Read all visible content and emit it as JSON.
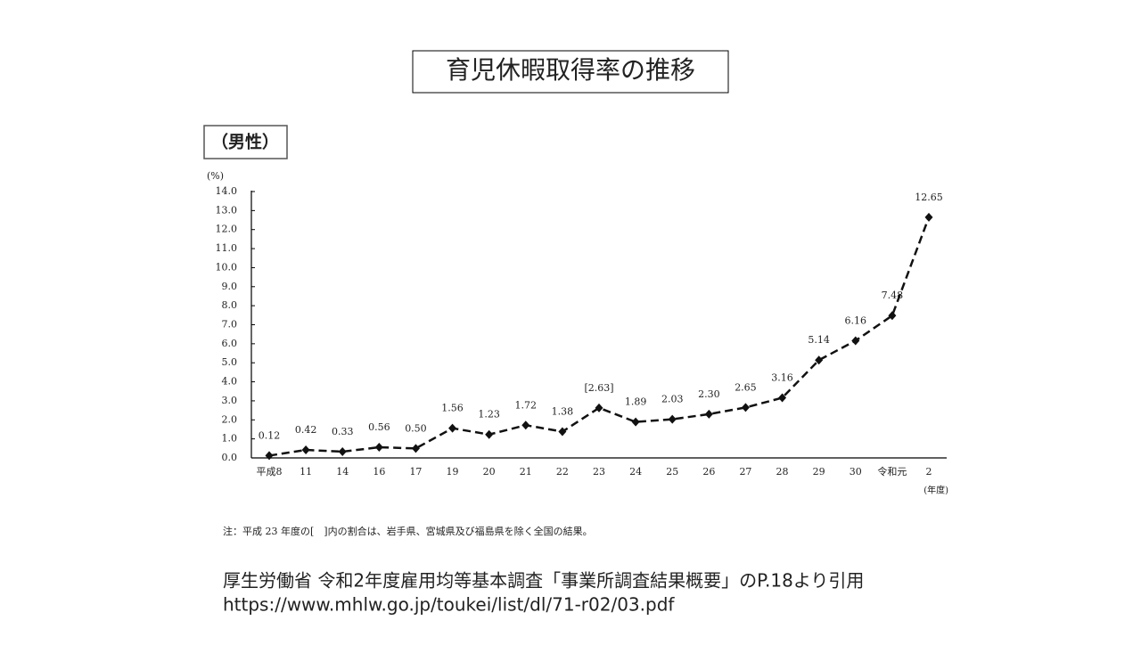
{
  "slide_title": "育児休暇取得率の推移",
  "chart_data": {
    "type": "line",
    "subtitle": "（男性）",
    "y_unit": "(%)",
    "x_unit": "(年度)",
    "categories": [
      "平成8",
      "11",
      "14",
      "16",
      "17",
      "19",
      "20",
      "21",
      "22",
      "23",
      "24",
      "25",
      "26",
      "27",
      "28",
      "29",
      "30",
      "令和元",
      "2"
    ],
    "values": [
      0.12,
      0.42,
      0.33,
      0.56,
      0.5,
      1.56,
      1.23,
      1.72,
      1.38,
      2.63,
      1.89,
      2.03,
      2.3,
      2.65,
      3.16,
      5.14,
      6.16,
      7.48,
      12.65
    ],
    "value_labels": [
      "0.12",
      "0.42",
      "0.33",
      "0.56",
      "0.50",
      "1.56",
      "1.23",
      "1.72",
      "1.38",
      "[2.63]",
      "1.89",
      "2.03",
      "2.30",
      "2.65",
      "3.16",
      "5.14",
      "6.16",
      "7.48",
      "12.65"
    ],
    "color": "#111111",
    "ylim": [
      0,
      14
    ],
    "yticks": [
      {
        "value": 0,
        "label": "0.0"
      },
      {
        "value": 1,
        "label": "1.0"
      },
      {
        "value": 2,
        "label": "2.0"
      },
      {
        "value": 3,
        "label": "3.0"
      },
      {
        "value": 4,
        "label": "4.0"
      },
      {
        "value": 5,
        "label": "5.0"
      },
      {
        "value": 6,
        "label": "6.0"
      },
      {
        "value": 7,
        "label": "7.0"
      },
      {
        "value": 8,
        "label": "8.0"
      },
      {
        "value": 9,
        "label": "9.0"
      },
      {
        "value": 10,
        "label": "10.0"
      },
      {
        "value": 11,
        "label": "11.0"
      },
      {
        "value": 12,
        "label": "12.0"
      },
      {
        "value": 13,
        "label": "13.0"
      },
      {
        "value": 14,
        "label": "14.0"
      }
    ],
    "note": "注：平成 23 年度の[　]内の割合は、岩手県、宮城県及び福島県を除く全国の結果。"
  },
  "source": [
    "厚生労働省 令和2年度雇用均等基本調査「事業所調査結果概要」のP.18より引用",
    "https://www.mhlw.go.jp/toukei/list/dl/71-r02/03.pdf"
  ]
}
